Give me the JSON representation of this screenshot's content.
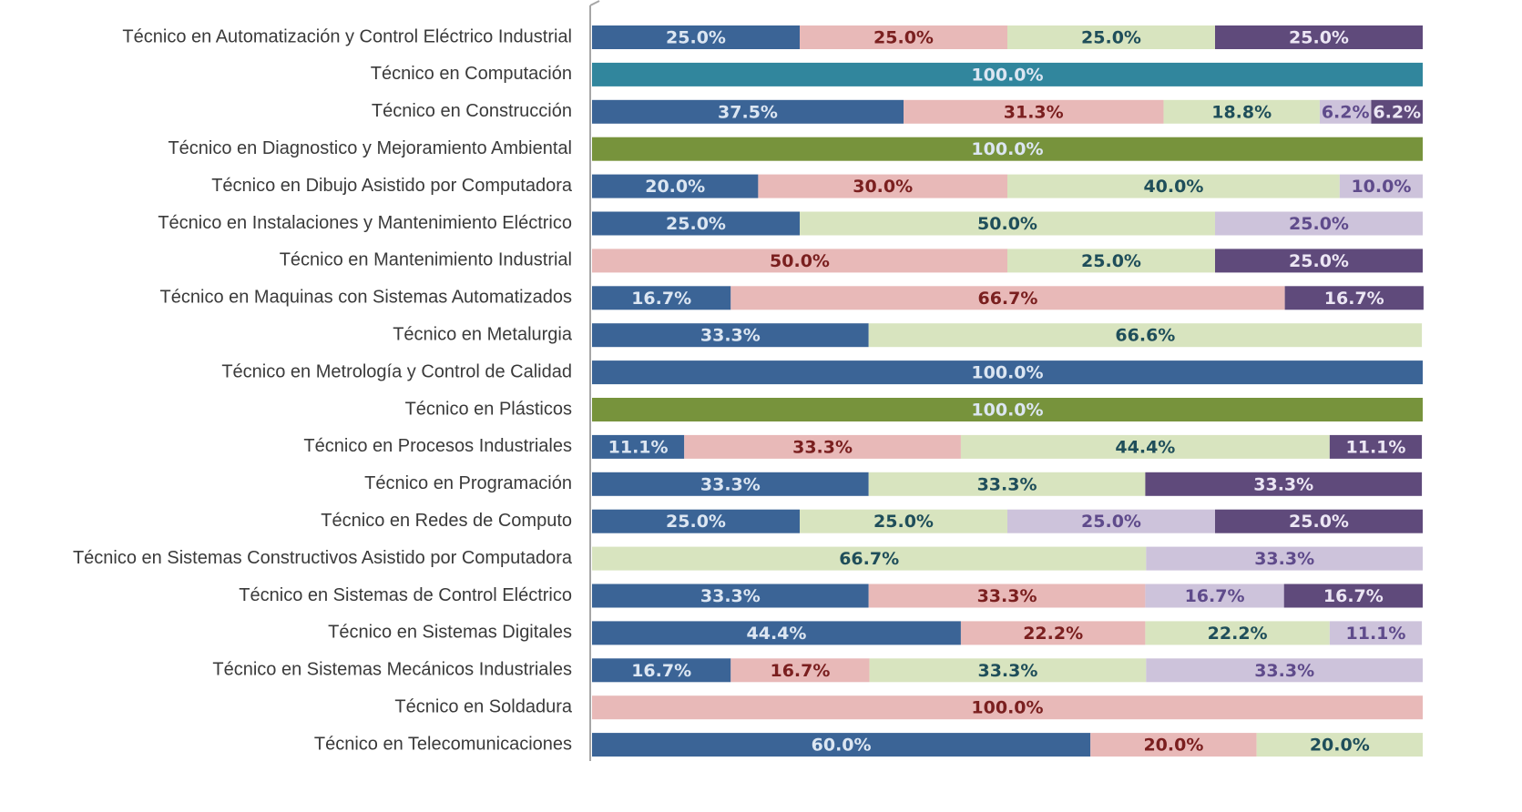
{
  "chart_data": {
    "type": "stacked_barh",
    "categories": [
      "Técnico en Automatización y Control Eléctrico Industrial",
      "Técnico en Computación",
      "Técnico en Construcción",
      "Técnico en Diagnostico y Mejoramiento Ambiental",
      "Técnico en Dibujo Asistido por Computadora",
      "Técnico en Instalaciones y Mantenimiento Eléctrico",
      "Técnico en Mantenimiento Industrial",
      "Técnico en Maquinas con Sistemas Automatizados",
      "Técnico en Metalurgia",
      "Técnico en Metrología y Control de Calidad",
      "Técnico en Plásticos",
      "Técnico en Procesos Industriales",
      "Técnico en Programación",
      "Técnico en Redes de Computo",
      "Técnico en Sistemas Constructivos Asistido por Computadora",
      "Técnico en Sistemas de Control Eléctrico",
      "Técnico en Sistemas Digitales",
      "Técnico en Sistemas Mecánicos Industriales",
      "Técnico en Soldadura",
      "Técnico en Telecomunicaciones"
    ],
    "xlim": [
      0,
      100
    ],
    "series": [
      {
        "color": "#3b6496",
        "label_color": "#dce6f2",
        "values": [
          25,
          null,
          37.5,
          null,
          20,
          25,
          null,
          16.7,
          33.3,
          100,
          null,
          11.1,
          33.3,
          25,
          null,
          33.3,
          44.4,
          16.7,
          null,
          60
        ],
        "value_labels": [
          "25.0%",
          null,
          "37.5%",
          null,
          "20.0%",
          "25.0%",
          null,
          "16.7%",
          "33.3%",
          "100.0%",
          null,
          "11.1%",
          "33.3%",
          "25.0%",
          null,
          "33.3%",
          "44.4%",
          "16.7%",
          null,
          "60.0%"
        ]
      },
      {
        "color": "#e8b9b8",
        "label_color": "#7a1f1f",
        "values": [
          25,
          null,
          31.3,
          null,
          30,
          null,
          50,
          66.7,
          null,
          null,
          null,
          33.3,
          null,
          null,
          null,
          33.3,
          22.2,
          16.7,
          100,
          20
        ],
        "value_labels": [
          "25.0%",
          null,
          "31.3%",
          null,
          "30.0%",
          null,
          "50.0%",
          "66.7%",
          null,
          null,
          null,
          "33.3%",
          null,
          null,
          null,
          "33.3%",
          "22.2%",
          "16.7%",
          "100.0%",
          "20.0%"
        ]
      },
      {
        "color": "#d8e4bf",
        "label_color": "#1f4e5a",
        "values": [
          25,
          null,
          18.8,
          null,
          40,
          50,
          25,
          null,
          66.6,
          null,
          null,
          44.4,
          33.3,
          25,
          66.7,
          null,
          22.2,
          33.3,
          null,
          20
        ],
        "value_labels": [
          "25.0%",
          null,
          "18.8%",
          null,
          "40.0%",
          "50.0%",
          "25.0%",
          null,
          "66.6%",
          null,
          null,
          "44.4%",
          "33.3%",
          "25.0%",
          "66.7%",
          null,
          "22.2%",
          "33.3%",
          null,
          "20.0%"
        ]
      },
      {
        "color": "#cdc3db",
        "label_color": "#5f4b8b",
        "values": [
          null,
          null,
          6.2,
          null,
          10,
          25,
          null,
          null,
          null,
          null,
          null,
          null,
          null,
          25,
          33.3,
          16.7,
          11.1,
          33.3,
          null,
          null
        ],
        "value_labels": [
          null,
          null,
          "6.2%",
          null,
          "10.0%",
          "25.0%",
          null,
          null,
          null,
          null,
          null,
          null,
          null,
          "25.0%",
          "33.3%",
          "16.7%",
          "11.1%",
          "33.3%",
          null,
          null
        ]
      },
      {
        "color": "#5f4a7b",
        "label_color": "#ece6f4",
        "values": [
          25,
          null,
          6.2,
          null,
          null,
          null,
          25,
          16.7,
          null,
          null,
          null,
          11.1,
          33.3,
          25,
          null,
          16.7,
          null,
          null,
          null,
          null
        ],
        "value_labels": [
          "25.0%",
          null,
          "6.2%",
          null,
          null,
          null,
          "25.0%",
          "16.7%",
          null,
          null,
          null,
          "11.1%",
          "33.3%",
          "25.0%",
          null,
          "16.7%",
          null,
          null,
          null,
          null
        ]
      },
      {
        "color": "#31869d",
        "label_color": "#dce6f2",
        "values": [
          null,
          100,
          null,
          null,
          null,
          null,
          null,
          null,
          null,
          null,
          null,
          null,
          null,
          null,
          null,
          null,
          null,
          null,
          null,
          null
        ],
        "value_labels": [
          null,
          "100.0%",
          null,
          null,
          null,
          null,
          null,
          null,
          null,
          null,
          null,
          null,
          null,
          null,
          null,
          null,
          null,
          null,
          null,
          null
        ]
      },
      {
        "color": "#77933c",
        "label_color": "#dce6f2",
        "values": [
          null,
          null,
          null,
          100,
          null,
          null,
          null,
          null,
          null,
          null,
          100,
          null,
          null,
          null,
          null,
          null,
          null,
          null,
          null,
          null
        ],
        "value_labels": [
          null,
          null,
          null,
          "100.0%",
          null,
          null,
          null,
          null,
          null,
          null,
          "100.0%",
          null,
          null,
          null,
          null,
          null,
          null,
          null,
          null,
          null
        ]
      }
    ]
  }
}
